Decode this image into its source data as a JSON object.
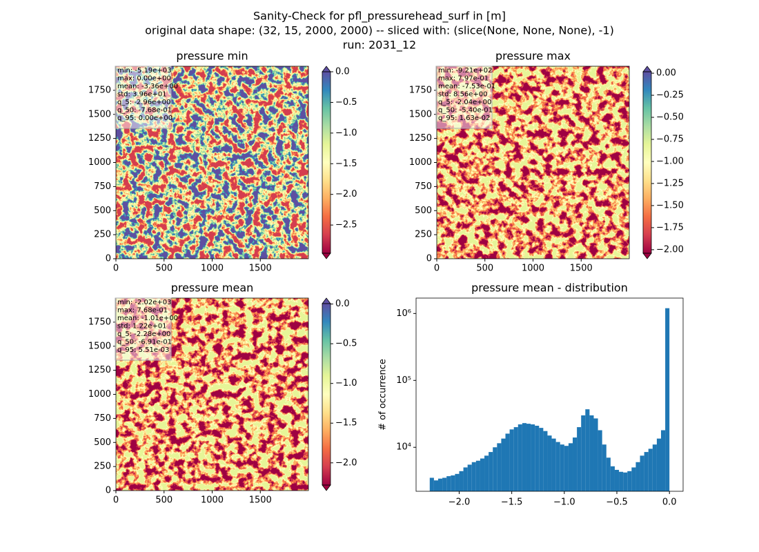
{
  "figure": {
    "title_lines": [
      "Sanity-Check for pfl_pressurehead_surf in [m]",
      "original data shape: (32, 15, 2000, 2000) -- sliced with: (slice(None, None, None), -1)",
      "run: 2031_12"
    ],
    "colormap": [
      "#9e0142",
      "#d53e4f",
      "#f46d43",
      "#fdae61",
      "#fee08b",
      "#ffffbf",
      "#e6f598",
      "#abdda4",
      "#66c2a5",
      "#3288bd",
      "#5e4fa2"
    ]
  },
  "chart_data": [
    {
      "type": "image",
      "title": "pressure min",
      "stats": [
        "min: -5.19e+03",
        "max: 0.00e+00",
        "mean: -3.36e+00",
        "std: 3.96e+01",
        "q_5: -2.96e+00",
        "q_50: -7.68e-01",
        "q_95: 0.00e+00"
      ],
      "xlim": [
        0,
        2000
      ],
      "ylim": [
        0,
        2000
      ],
      "xticks": [
        0,
        500,
        1000,
        1500
      ],
      "yticks": [
        0,
        250,
        500,
        750,
        1000,
        1250,
        1500,
        1750
      ],
      "colorbar": {
        "lim": [
          -2.96,
          0
        ],
        "ticks": [
          {
            "value": 0,
            "label": "0.0"
          },
          {
            "value": -0.5,
            "label": "−0.5"
          },
          {
            "value": -1,
            "label": "−1.0"
          },
          {
            "value": -1.5,
            "label": "−1.5"
          },
          {
            "value": -2,
            "label": "−2.0"
          },
          {
            "value": -2.5,
            "label": "−2.5"
          }
        ]
      }
    },
    {
      "type": "image",
      "title": "pressure max",
      "stats": [
        "min: -9.21e+02",
        "max: 7.97e-01",
        "mean: -7.53e-01",
        "std: 8.56e+00",
        "q_5: -2.04e+00",
        "q_50: -5.40e-01",
        "q_95: 1.63e-02"
      ],
      "xlim": [
        0,
        2000
      ],
      "ylim": [
        0,
        2000
      ],
      "xticks": [
        0,
        500,
        1000,
        1500
      ],
      "yticks": [
        0,
        250,
        500,
        750,
        1000,
        1250,
        1500,
        1750
      ],
      "colorbar": {
        "lim": [
          -2.04,
          0.0163
        ],
        "ticks": [
          {
            "value": 0,
            "label": "0.00"
          },
          {
            "value": -0.25,
            "label": "−0.25"
          },
          {
            "value": -0.5,
            "label": "−0.50"
          },
          {
            "value": -0.75,
            "label": "−0.75"
          },
          {
            "value": -1,
            "label": "−1.00"
          },
          {
            "value": -1.25,
            "label": "−1.25"
          },
          {
            "value": -1.5,
            "label": "−1.50"
          },
          {
            "value": -1.75,
            "label": "−1.75"
          },
          {
            "value": -2,
            "label": "−2.00"
          }
        ]
      }
    },
    {
      "type": "image",
      "title": "pressure mean",
      "stats": [
        "min: -2.02e+03",
        "max: 7.68e-01",
        "mean: -1.01e+00",
        "std: 1.22e+01",
        "q_5: -2.28e+00",
        "q_50: -6.91e-01",
        "q_95: 5.51e-03"
      ],
      "xlim": [
        0,
        2000
      ],
      "ylim": [
        0,
        2000
      ],
      "xticks": [
        0,
        500,
        1000,
        1500
      ],
      "yticks": [
        0,
        250,
        500,
        750,
        1000,
        1250,
        1500,
        1750
      ],
      "colorbar": {
        "lim": [
          -2.28,
          0.0055
        ],
        "ticks": [
          {
            "value": 0,
            "label": "0.0"
          },
          {
            "value": -0.5,
            "label": "−0.5"
          },
          {
            "value": -1,
            "label": "−1.0"
          },
          {
            "value": -1.5,
            "label": "−1.5"
          },
          {
            "value": -2,
            "label": "−2.0"
          }
        ]
      }
    },
    {
      "type": "histogram",
      "title": "pressure mean - distribution",
      "ylabel": "# of occurrence",
      "color": "#1f77b4",
      "yscale": "log",
      "bins": [
        -2.28,
        -2.24,
        -2.2,
        -2.16,
        -2.12,
        -2.08,
        -2.04,
        -2,
        -1.96,
        -1.92,
        -1.88,
        -1.84,
        -1.8,
        -1.76,
        -1.72,
        -1.68,
        -1.64,
        -1.6,
        -1.56,
        -1.52,
        -1.48,
        -1.44,
        -1.4,
        -1.36,
        -1.32,
        -1.28,
        -1.24,
        -1.2,
        -1.16,
        -1.12,
        -1.08,
        -1.04,
        -1,
        -0.96,
        -0.92,
        -0.88,
        -0.84,
        -0.8,
        -0.76,
        -0.72,
        -0.68,
        -0.64,
        -0.6,
        -0.56,
        -0.52,
        -0.48,
        -0.44,
        -0.4,
        -0.36,
        -0.32,
        -0.28,
        -0.24,
        -0.2,
        -0.16,
        -0.12,
        -0.08,
        -0.04,
        0
      ],
      "values": [
        3500,
        3200,
        3400,
        3500,
        3700,
        3800,
        4000,
        4400,
        5000,
        5500,
        6000,
        6300,
        6800,
        7500,
        8500,
        10000,
        11500,
        13500,
        16000,
        18500,
        20000,
        22000,
        23000,
        22500,
        22000,
        21000,
        19500,
        17500,
        15000,
        13500,
        12000,
        11000,
        10500,
        11500,
        14000,
        20000,
        30000,
        37000,
        30000,
        27000,
        18000,
        11000,
        7000,
        5200,
        4600,
        4300,
        4200,
        4400,
        5000,
        6000,
        7500,
        8500,
        9500,
        11000,
        13500,
        18000,
        1200000
      ],
      "xlim": [
        -2.41,
        0.13
      ],
      "ylim": [
        2200,
        1700000
      ],
      "xticks": [
        {
          "value": -2,
          "label": "−2.0"
        },
        {
          "value": -1.5,
          "label": "−1.5"
        },
        {
          "value": -1,
          "label": "−1.0"
        },
        {
          "value": -0.5,
          "label": "−0.5"
        },
        {
          "value": 0,
          "label": "0.0"
        }
      ],
      "yticks": [
        {
          "value": 10000,
          "label": "10⁴"
        },
        {
          "value": 100000,
          "label": "10⁵"
        },
        {
          "value": 1000000,
          "label": "10⁶"
        }
      ]
    }
  ]
}
